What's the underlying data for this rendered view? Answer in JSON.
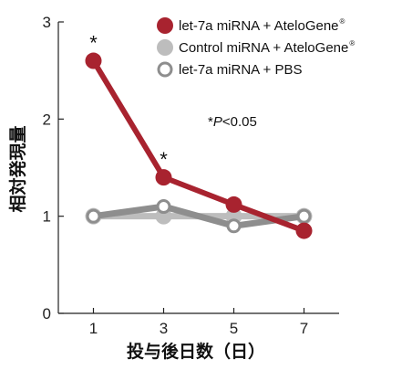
{
  "chart_data": {
    "type": "line",
    "xlabel": "投与後日数（日）",
    "ylabel": "相対発現量",
    "x": [
      1,
      3,
      5,
      7
    ],
    "xlim": [
      0,
      8
    ],
    "ylim": [
      0,
      3
    ],
    "xticks": [
      "1",
      "3",
      "5",
      "7"
    ],
    "yticks": [
      "0",
      "1",
      "2",
      "3"
    ],
    "series": [
      {
        "name": "let-7a miRNA + AteloGene",
        "name_suffix": "®",
        "color": "#a8232f",
        "marker": "filled-circle",
        "values": [
          2.6,
          1.4,
          1.12,
          0.85
        ]
      },
      {
        "name": "Control miRNA + AteloGene",
        "name_suffix": "®",
        "color": "#bdbdbd",
        "marker": "filled-circle",
        "values": [
          1.0,
          1.0,
          1.0,
          1.0
        ]
      },
      {
        "name": "let-7a miRNA + PBS",
        "name_suffix": "",
        "color": "#8e8e8e",
        "marker": "open-circle",
        "values": [
          1.0,
          1.1,
          0.9,
          1.0
        ]
      }
    ],
    "significance_markers": [
      {
        "symbol": "*",
        "x": 1,
        "y": 2.6
      },
      {
        "symbol": "*",
        "x": 3,
        "y": 1.4
      }
    ],
    "annotation": {
      "star": "*",
      "p": "P",
      "rest": "<0.05"
    },
    "legend_position": "top-right",
    "grid": false
  }
}
